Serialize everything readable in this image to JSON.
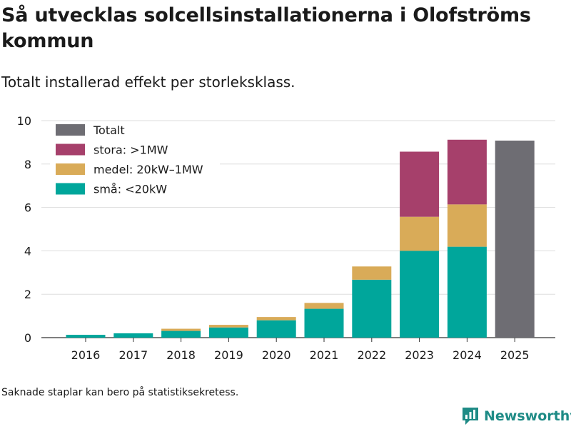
{
  "header": {
    "title": "Så utvecklas solcellsinstallationerna i Olofströms kommun",
    "subtitle": "Totalt installerad effekt per storleksklass."
  },
  "footer": {
    "note": "Saknade staplar kan bero på statistiksekretess.",
    "brand": "Newsworthy"
  },
  "colors": {
    "totalt": "#6e6d73",
    "stora": "#a6406b",
    "medel": "#d9ab58",
    "sma": "#00a69b",
    "grid": "#dddddd",
    "text": "#1a1a1a",
    "brand": "#1f8b86"
  },
  "chart_data": {
    "type": "bar",
    "stacked": true,
    "title": "Så utvecklas solcellsinstallationerna i Olofströms kommun",
    "subtitle": "Totalt installerad effekt per storleksklass.",
    "xlabel": "",
    "ylabel": "",
    "ylim": [
      0,
      10
    ],
    "yticks": [
      0,
      2,
      4,
      6,
      8,
      10
    ],
    "grid": true,
    "legend_position": "top-left",
    "categories": [
      "2016",
      "2017",
      "2018",
      "2019",
      "2020",
      "2021",
      "2022",
      "2023",
      "2024",
      "2025"
    ],
    "series": [
      {
        "key": "sma",
        "name": "små: <20kW",
        "values": [
          0.13,
          0.2,
          0.31,
          0.47,
          0.8,
          1.33,
          2.67,
          4.0,
          4.19,
          null
        ]
      },
      {
        "key": "medel",
        "name": "medel: 20kW–1MW",
        "values": [
          0,
          0,
          0.1,
          0.12,
          0.15,
          0.27,
          0.61,
          1.57,
          1.95,
          null
        ]
      },
      {
        "key": "stora",
        "name": "stora: >1MW",
        "values": [
          0,
          0,
          0,
          0,
          0,
          0,
          0,
          3.0,
          2.98,
          null
        ]
      },
      {
        "key": "totalt",
        "name": "Totalt",
        "values": [
          null,
          null,
          null,
          null,
          null,
          null,
          null,
          null,
          null,
          9.08
        ]
      }
    ],
    "legend_order": [
      "totalt",
      "stora",
      "medel",
      "sma"
    ]
  }
}
